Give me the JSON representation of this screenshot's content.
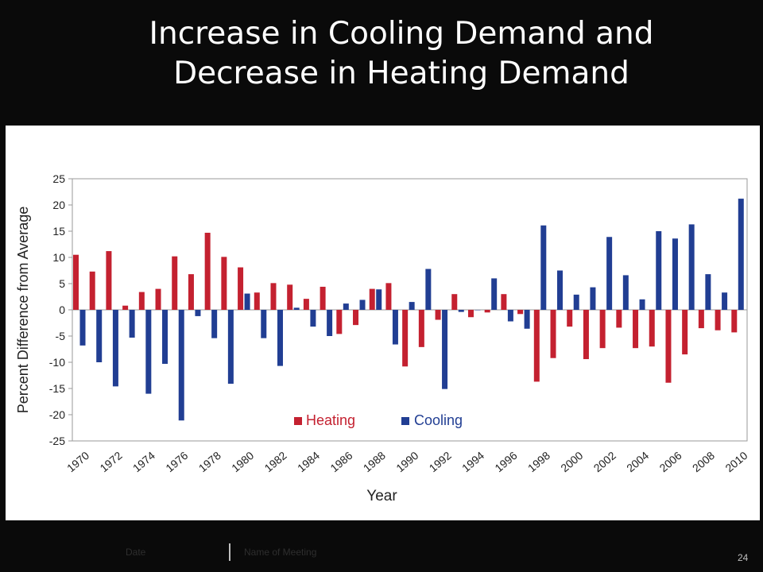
{
  "slide": {
    "title_line1": "Increase in Cooling Demand and",
    "title_line2": "Decrease in Heating Demand",
    "footer": {
      "date": "Date",
      "meeting": "Name of Meeting",
      "page_number": "24"
    }
  },
  "chart_data": {
    "type": "bar",
    "xlabel": "Year",
    "ylabel": "Percent Difference from Average",
    "ylim": [
      -25,
      25
    ],
    "yticks": [
      25,
      20,
      15,
      10,
      5,
      0,
      -5,
      -10,
      -15,
      -20,
      -25
    ],
    "x_tick_labels": [
      "1970",
      "1972",
      "1974",
      "1976",
      "1978",
      "1980",
      "1982",
      "1984",
      "1986",
      "1988",
      "1990",
      "1992",
      "1994",
      "1996",
      "1998",
      "2000",
      "2002",
      "2004",
      "2006",
      "2008",
      "2010"
    ],
    "categories": [
      1970,
      1971,
      1972,
      1973,
      1974,
      1975,
      1976,
      1977,
      1978,
      1979,
      1980,
      1981,
      1982,
      1983,
      1984,
      1985,
      1986,
      1987,
      1988,
      1989,
      1990,
      1991,
      1992,
      1993,
      1994,
      1995,
      1996,
      1997,
      1998,
      1999,
      2000,
      2001,
      2002,
      2003,
      2004,
      2005,
      2006,
      2007,
      2008,
      2009,
      2010
    ],
    "legend_position": "bottom-center-inside",
    "grid": false,
    "series": [
      {
        "name": "Heating",
        "color": "#c42130",
        "values": [
          10.5,
          7.3,
          11.2,
          0.8,
          3.4,
          4.0,
          10.2,
          6.8,
          14.7,
          10.1,
          8.1,
          3.3,
          5.1,
          4.8,
          2.1,
          4.4,
          -4.6,
          -2.9,
          4.0,
          5.1,
          -10.8,
          -7.1,
          -1.9,
          3.0,
          -1.4,
          -0.5,
          3.0,
          -0.8,
          -13.7,
          -9.2,
          -3.2,
          -9.4,
          -7.3,
          -3.4,
          -7.3,
          -7.0,
          -13.9,
          -8.5,
          -3.5,
          -3.9,
          -4.3
        ]
      },
      {
        "name": "Cooling",
        "color": "#213e93",
        "values": [
          -6.8,
          -10.0,
          -14.6,
          -5.3,
          -16.0,
          -10.3,
          -21.1,
          -1.2,
          -5.4,
          -14.1,
          3.1,
          -5.4,
          -10.7,
          0.4,
          -3.2,
          -5.0,
          1.2,
          1.9,
          3.9,
          -6.6,
          1.5,
          7.8,
          -15.1,
          -0.4,
          0.0,
          6.0,
          -2.2,
          -3.6,
          16.1,
          7.5,
          2.9,
          4.3,
          13.9,
          6.6,
          2.0,
          15.0,
          13.6,
          16.3,
          6.8,
          3.3,
          21.2
        ]
      }
    ]
  }
}
